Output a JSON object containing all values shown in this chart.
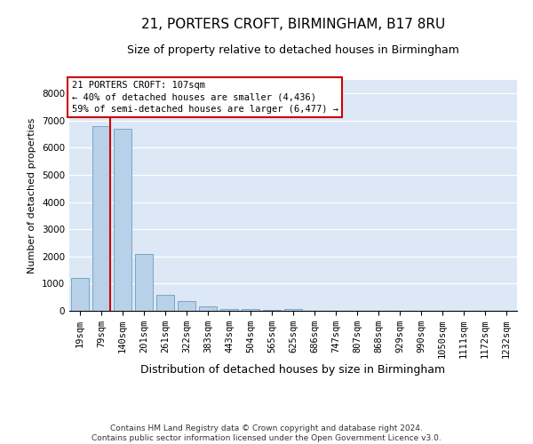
{
  "title_line1": "21, PORTERS CROFT, BIRMINGHAM, B17 8RU",
  "title_line2": "Size of property relative to detached houses in Birmingham",
  "xlabel": "Distribution of detached houses by size in Birmingham",
  "ylabel": "Number of detached properties",
  "footer_line1": "Contains HM Land Registry data © Crown copyright and database right 2024.",
  "footer_line2": "Contains public sector information licensed under the Open Government Licence v3.0.",
  "annotation_title": "21 PORTERS CROFT: 107sqm",
  "annotation_line1": "← 40% of detached houses are smaller (4,436)",
  "annotation_line2": "59% of semi-detached houses are larger (6,477) →",
  "bar_categories": [
    "19sqm",
    "79sqm",
    "140sqm",
    "201sqm",
    "261sqm",
    "322sqm",
    "383sqm",
    "443sqm",
    "504sqm",
    "565sqm",
    "625sqm",
    "686sqm",
    "747sqm",
    "807sqm",
    "868sqm",
    "929sqm",
    "990sqm",
    "1050sqm",
    "1111sqm",
    "1172sqm",
    "1232sqm"
  ],
  "bar_values": [
    1200,
    6800,
    6700,
    2100,
    600,
    350,
    150,
    80,
    50,
    30,
    50,
    0,
    0,
    0,
    0,
    0,
    0,
    0,
    0,
    0,
    0
  ],
  "bar_color": "#b8d0e8",
  "bar_edge_color": "#6a9fc0",
  "vline_color": "#cc0000",
  "vline_x": 1.43,
  "annotation_box_color": "#cc0000",
  "background_color": "#dce8f5",
  "ylim": [
    0,
    8500
  ],
  "yticks": [
    0,
    1000,
    2000,
    3000,
    4000,
    5000,
    6000,
    7000,
    8000
  ],
  "title_fontsize": 11,
  "subtitle_fontsize": 9,
  "ylabel_fontsize": 8,
  "xlabel_fontsize": 9,
  "tick_fontsize": 7.5,
  "annotation_fontsize": 7.5
}
